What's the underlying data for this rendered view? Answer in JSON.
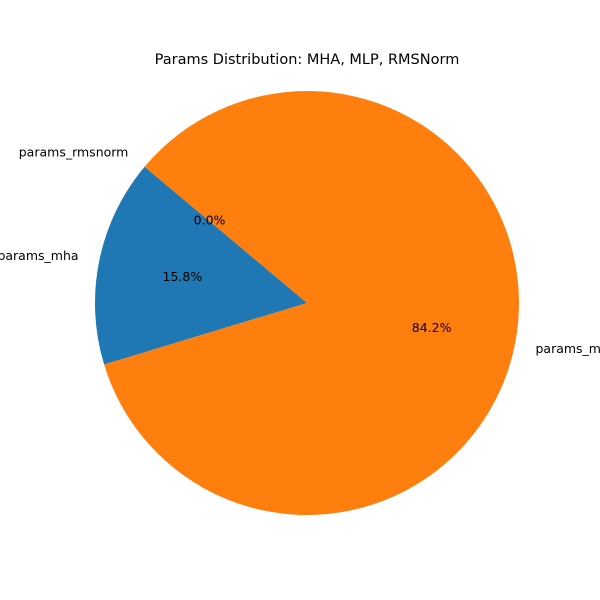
{
  "chart_data": {
    "type": "pie",
    "title": "Params Distribution: MHA, MLP, RMSNorm",
    "start_angle_deg": 140,
    "direction": "counterclockwise",
    "slices": [
      {
        "label": "params_mha",
        "value": 15.8,
        "pct_label": "15.8%",
        "color": "#1f77b4"
      },
      {
        "label": "params_mlp",
        "value": 84.2,
        "pct_label": "84.2%",
        "color": "#ff7f0e"
      },
      {
        "label": "params_rmsnorm",
        "value": 0.0,
        "pct_label": "0.0%",
        "color": "#2ca02c"
      }
    ]
  }
}
